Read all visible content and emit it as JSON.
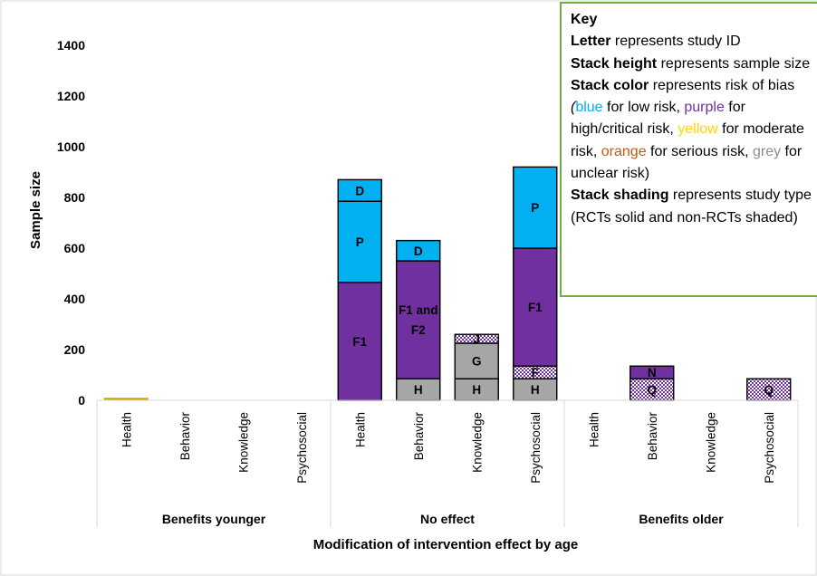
{
  "chart_data": {
    "type": "stacked-bar",
    "xlabel": "Modification of intervention effect by age",
    "ylabel": "Sample size",
    "ylim": [
      0,
      1400
    ],
    "yticks": [
      0,
      200,
      400,
      600,
      800,
      1000,
      1200,
      1400
    ],
    "groups": [
      {
        "label": "Benefits younger",
        "categories": [
          "Health",
          "Behavior",
          "Knowledge",
          "Psychosocial"
        ]
      },
      {
        "label": "No effect",
        "categories": [
          "Health",
          "Behavior",
          "Knowledge",
          "Psychosocial"
        ]
      },
      {
        "label": "Benefits older",
        "categories": [
          "Health",
          "Behavior",
          "Knowledge",
          "Psychosocial"
        ]
      }
    ],
    "risk_colors": {
      "low": "#00b0f0",
      "high": "#7030a0",
      "moderate": "#c9a800",
      "serious": "#c55a11",
      "unclear": "#a6a6a6"
    },
    "bars": [
      {
        "group": 0,
        "category": 0,
        "segments": [
          {
            "study": "",
            "value": 8,
            "risk": "moderate",
            "shaded": false
          }
        ]
      },
      {
        "group": 1,
        "category": 0,
        "segments": [
          {
            "study": "F1",
            "value": 465,
            "risk": "high",
            "shaded": false
          },
          {
            "study": "P",
            "value": 320,
            "risk": "low",
            "shaded": false
          },
          {
            "study": "D",
            "value": 85,
            "risk": "low",
            "shaded": false
          }
        ]
      },
      {
        "group": 1,
        "category": 1,
        "segments": [
          {
            "study": "H",
            "value": 85,
            "risk": "unclear",
            "shaded": false
          },
          {
            "study": "F1 and F2",
            "value": 465,
            "risk": "high",
            "shaded": false
          },
          {
            "study": "D",
            "value": 80,
            "risk": "low",
            "shaded": false
          }
        ]
      },
      {
        "group": 1,
        "category": 2,
        "segments": [
          {
            "study": "H",
            "value": 85,
            "risk": "unclear",
            "shaded": false
          },
          {
            "study": "G",
            "value": 140,
            "risk": "unclear",
            "shaded": false
          },
          {
            "study": "J",
            "value": 35,
            "risk": "high",
            "shaded": true
          }
        ]
      },
      {
        "group": 1,
        "category": 3,
        "segments": [
          {
            "study": "H",
            "value": 85,
            "risk": "unclear",
            "shaded": false
          },
          {
            "study": "F",
            "value": 50,
            "risk": "high",
            "shaded": true
          },
          {
            "study": "F1",
            "value": 465,
            "risk": "high",
            "shaded": false
          },
          {
            "study": "P",
            "value": 320,
            "risk": "low",
            "shaded": false
          }
        ]
      },
      {
        "group": 2,
        "category": 1,
        "segments": [
          {
            "study": "Q",
            "value": 85,
            "risk": "high",
            "shaded": true
          },
          {
            "study": "N",
            "value": 50,
            "risk": "high",
            "shaded": false
          }
        ]
      },
      {
        "group": 2,
        "category": 3,
        "segments": [
          {
            "study": "Q",
            "value": 85,
            "risk": "high",
            "shaded": true
          }
        ]
      }
    ]
  },
  "key": {
    "title": "Key",
    "letter_bold": "Letter",
    "letter_text": " represents study ID",
    "height_bold": "Stack height",
    "height_text": " represents sample size",
    "color_bold": "Stack color",
    "color_text_1": " represents risk of bias ",
    "paren_open": "(",
    "blue_word": "blue",
    "color_text_2": " for low risk, ",
    "purple_word": "purple",
    "color_text_3": " for high/critical risk, ",
    "yellow_word": "yellow",
    "color_text_4": " for moderate risk, ",
    "orange_word": "orange",
    "color_text_5": " for serious risk, ",
    "grey_word": "grey",
    "color_text_6": " for unclear risk)",
    "shading_bold": "Stack shading",
    "shading_text": " represents study type (RCTs solid and non-RCTs shaded)",
    "colors": {
      "blue": "#00b0f0",
      "purple": "#7030a0",
      "yellow": "#ffd400",
      "orange": "#c55a11",
      "grey": "#8c8c8c"
    }
  }
}
